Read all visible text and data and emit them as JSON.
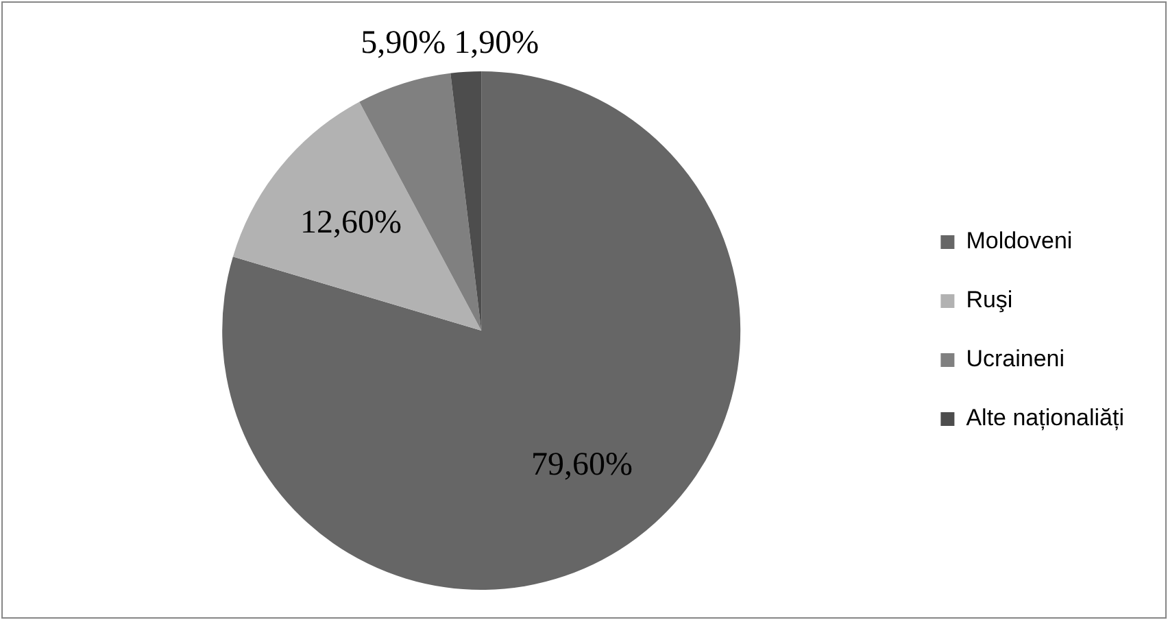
{
  "chart_data": {
    "type": "pie",
    "categories": [
      "Moldoveni",
      "Ruşi",
      "Ucraineni",
      "Alte naționaliăți"
    ],
    "values": [
      79.6,
      12.6,
      5.9,
      1.9
    ],
    "colors": [
      "#666666",
      "#b2b2b2",
      "#808080",
      "#4d4d4d"
    ],
    "value_labels": [
      "79,60%",
      "12,60%",
      "5,90%",
      "1,90%"
    ],
    "legend": "right"
  }
}
